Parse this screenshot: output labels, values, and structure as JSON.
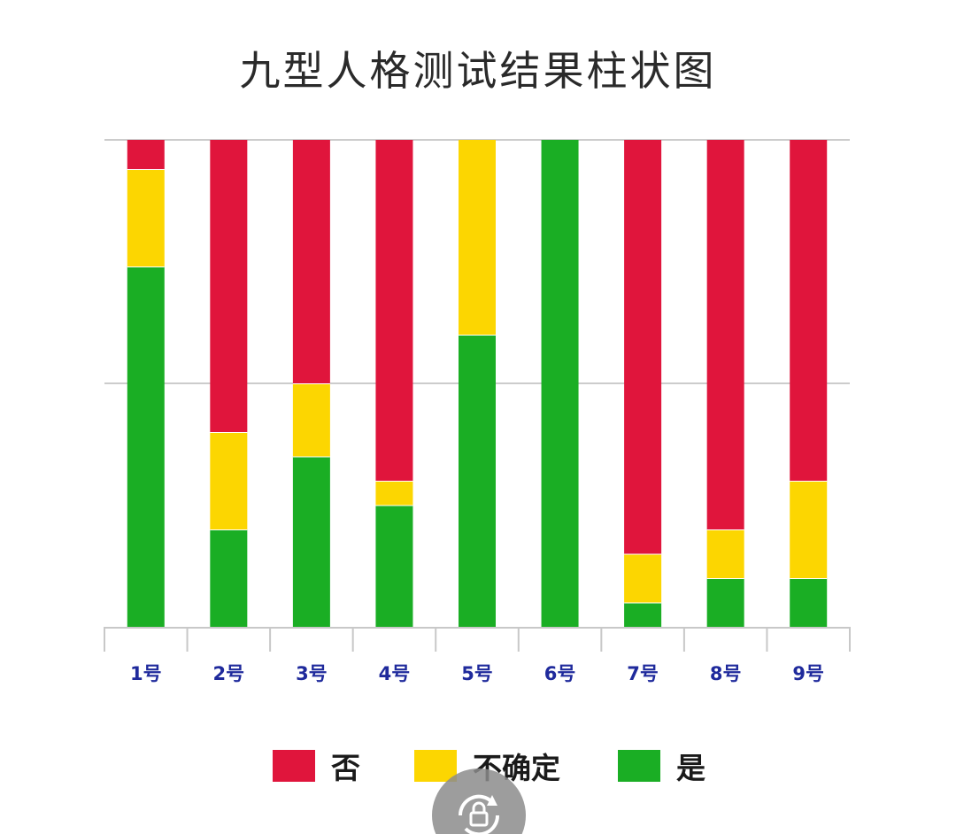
{
  "chart_data": {
    "type": "bar",
    "stacked": true,
    "title": "九型人格测试结果柱状图",
    "categories": [
      "1号",
      "2号",
      "3号",
      "4号",
      "5号",
      "6号",
      "7号",
      "8号",
      "9号"
    ],
    "series": [
      {
        "name": "是",
        "color": "#1aae24",
        "values": [
          74,
          20,
          35,
          25,
          60,
          100,
          5,
          10,
          10
        ]
      },
      {
        "name": "不确定",
        "color": "#fcd601",
        "values": [
          20,
          20,
          15,
          5,
          40,
          0,
          10,
          10,
          20
        ]
      },
      {
        "name": "否",
        "color": "#e0153c",
        "values": [
          6,
          60,
          50,
          70,
          0,
          0,
          85,
          80,
          70
        ]
      }
    ],
    "stack_order_bottom_to_top": [
      "是",
      "不确定",
      "否"
    ],
    "ylim": [
      0,
      100
    ],
    "grid": true,
    "legend_position": "bottom",
    "legend_order": [
      "否",
      "不确定",
      "是"
    ]
  },
  "colors": {
    "grid": "#cccccc",
    "axis": "#c8c8c8",
    "tick_label": "#1f2a9c"
  },
  "floating_button": {
    "icon": "lock-refresh-icon"
  }
}
